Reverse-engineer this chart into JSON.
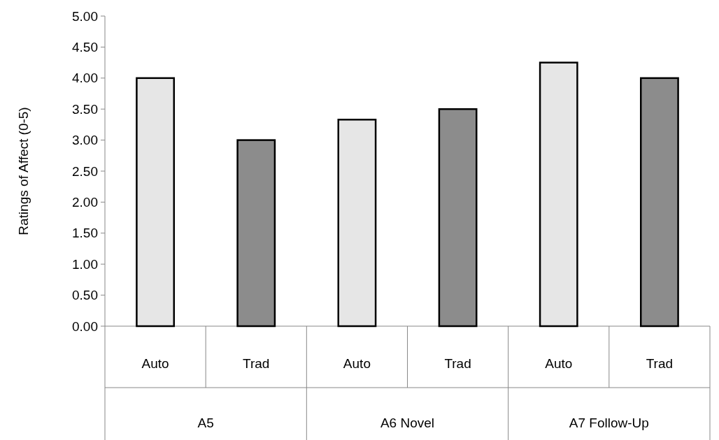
{
  "chart_data": {
    "type": "bar",
    "ylabel": "Ratings of Affect (0-5)",
    "categories": [
      "A5",
      "A6 Novel",
      "A7 Follow-Up"
    ],
    "series": [
      {
        "name": "Auto",
        "color": "#e6e6e6",
        "values": [
          4.0,
          3.33,
          4.25
        ]
      },
      {
        "name": "Trad",
        "color": "#8c8c8c",
        "values": [
          3.0,
          3.5,
          4.0
        ]
      }
    ],
    "ylim": [
      0,
      5
    ],
    "yticks": [
      {
        "value": 0,
        "label": "0.00"
      },
      {
        "value": 0.5,
        "label": "0.50"
      },
      {
        "value": 1,
        "label": "1.00"
      },
      {
        "value": 1.5,
        "label": "1.50"
      },
      {
        "value": 2,
        "label": "2.00"
      },
      {
        "value": 2.5,
        "label": "2.50"
      },
      {
        "value": 3,
        "label": "3.00"
      },
      {
        "value": 3.5,
        "label": "3.50"
      },
      {
        "value": 4,
        "label": "4.00"
      },
      {
        "value": 4.5,
        "label": "4.50"
      },
      {
        "value": 5,
        "label": "5.00"
      }
    ],
    "grid": false
  }
}
